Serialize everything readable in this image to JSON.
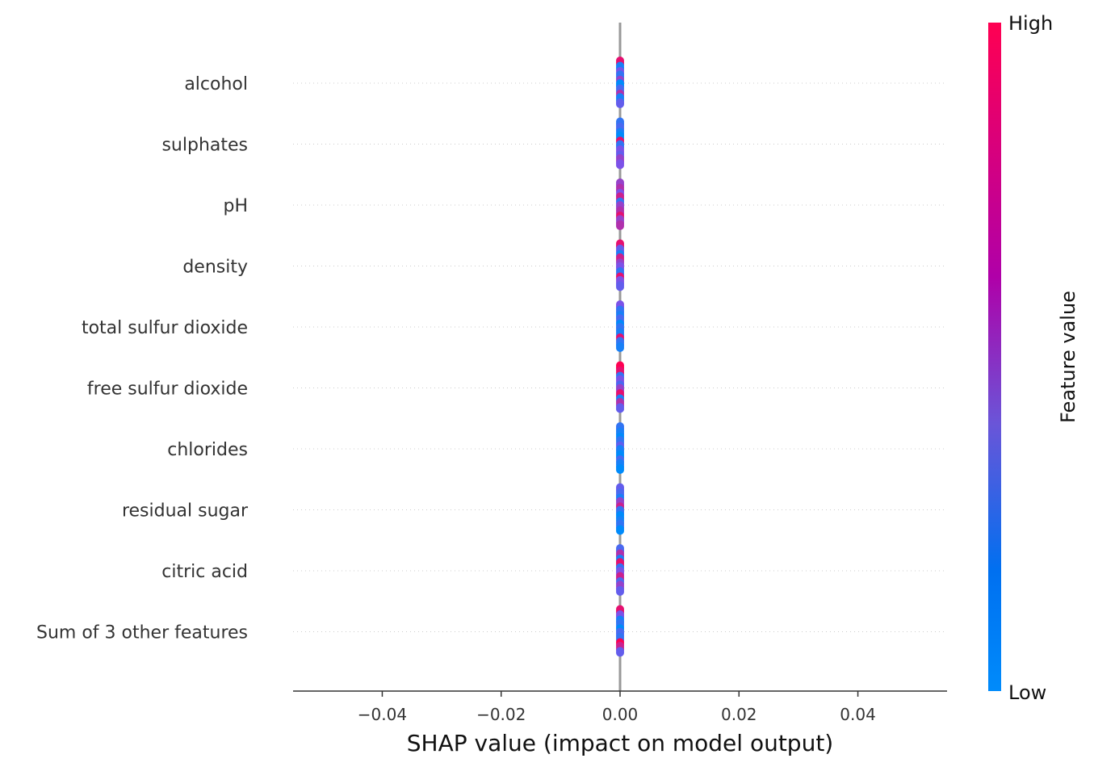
{
  "chart_data": {
    "type": "beeswarm",
    "title": "",
    "xlabel": "SHAP value (impact on model output)",
    "ylabel": "",
    "xlim": [
      -0.055,
      0.055
    ],
    "xticks": [
      -0.04,
      -0.02,
      0.0,
      0.02,
      0.04
    ],
    "xtick_labels": [
      "−0.04",
      "−0.02",
      "0.00",
      "0.02",
      "0.04"
    ],
    "zero_line": 0.0,
    "features": [
      "alcohol",
      "sulphates",
      "pH",
      "density",
      "total sulfur dioxide",
      "free sulfur dioxide",
      "chlorides",
      "residual sugar",
      "citric acid",
      "Sum of 3 other features"
    ],
    "shap_values_all_features": 0.0,
    "colorbar": {
      "label": "Feature value",
      "high_label": "High",
      "low_label": "Low",
      "low_color": "#008bfb",
      "mid_color": "#7c52e8",
      "high_color": "#ff0052"
    },
    "point_pattern": [
      [
        0.9,
        0.1,
        0.5,
        0.2,
        0.6,
        0.0,
        0.3,
        0.7,
        0.1,
        0.4
      ],
      [
        0.2,
        0.3,
        0.1,
        0.0,
        0.9,
        0.2,
        0.5,
        0.4,
        0.6,
        0.5
      ],
      [
        0.6,
        0.7,
        0.5,
        0.8,
        0.2,
        0.6,
        0.7,
        0.9,
        0.6,
        0.7
      ],
      [
        0.9,
        0.4,
        0.1,
        0.8,
        0.6,
        0.5,
        0.2,
        0.9,
        0.5,
        0.4
      ],
      [
        0.5,
        0.2,
        0.1,
        0.3,
        0.0,
        0.2,
        0.1,
        0.9,
        0.2,
        0.1
      ],
      [
        1.0,
        0.9,
        0.2,
        0.5,
        0.3,
        0.6,
        0.9,
        0.1,
        0.7,
        0.4
      ],
      [
        0.2,
        0.1,
        0.0,
        0.2,
        0.4,
        0.1,
        0.0,
        0.3,
        0.1,
        0.0
      ],
      [
        0.4,
        0.3,
        0.1,
        0.6,
        0.8,
        0.2,
        0.0,
        0.1,
        0.2,
        0.0
      ],
      [
        0.3,
        0.7,
        0.1,
        0.9,
        0.2,
        0.5,
        0.8,
        0.3,
        0.6,
        0.4
      ],
      [
        0.9,
        0.5,
        0.1,
        0.2,
        0.0,
        0.3,
        0.2,
        1.0,
        0.8,
        0.4
      ]
    ]
  }
}
